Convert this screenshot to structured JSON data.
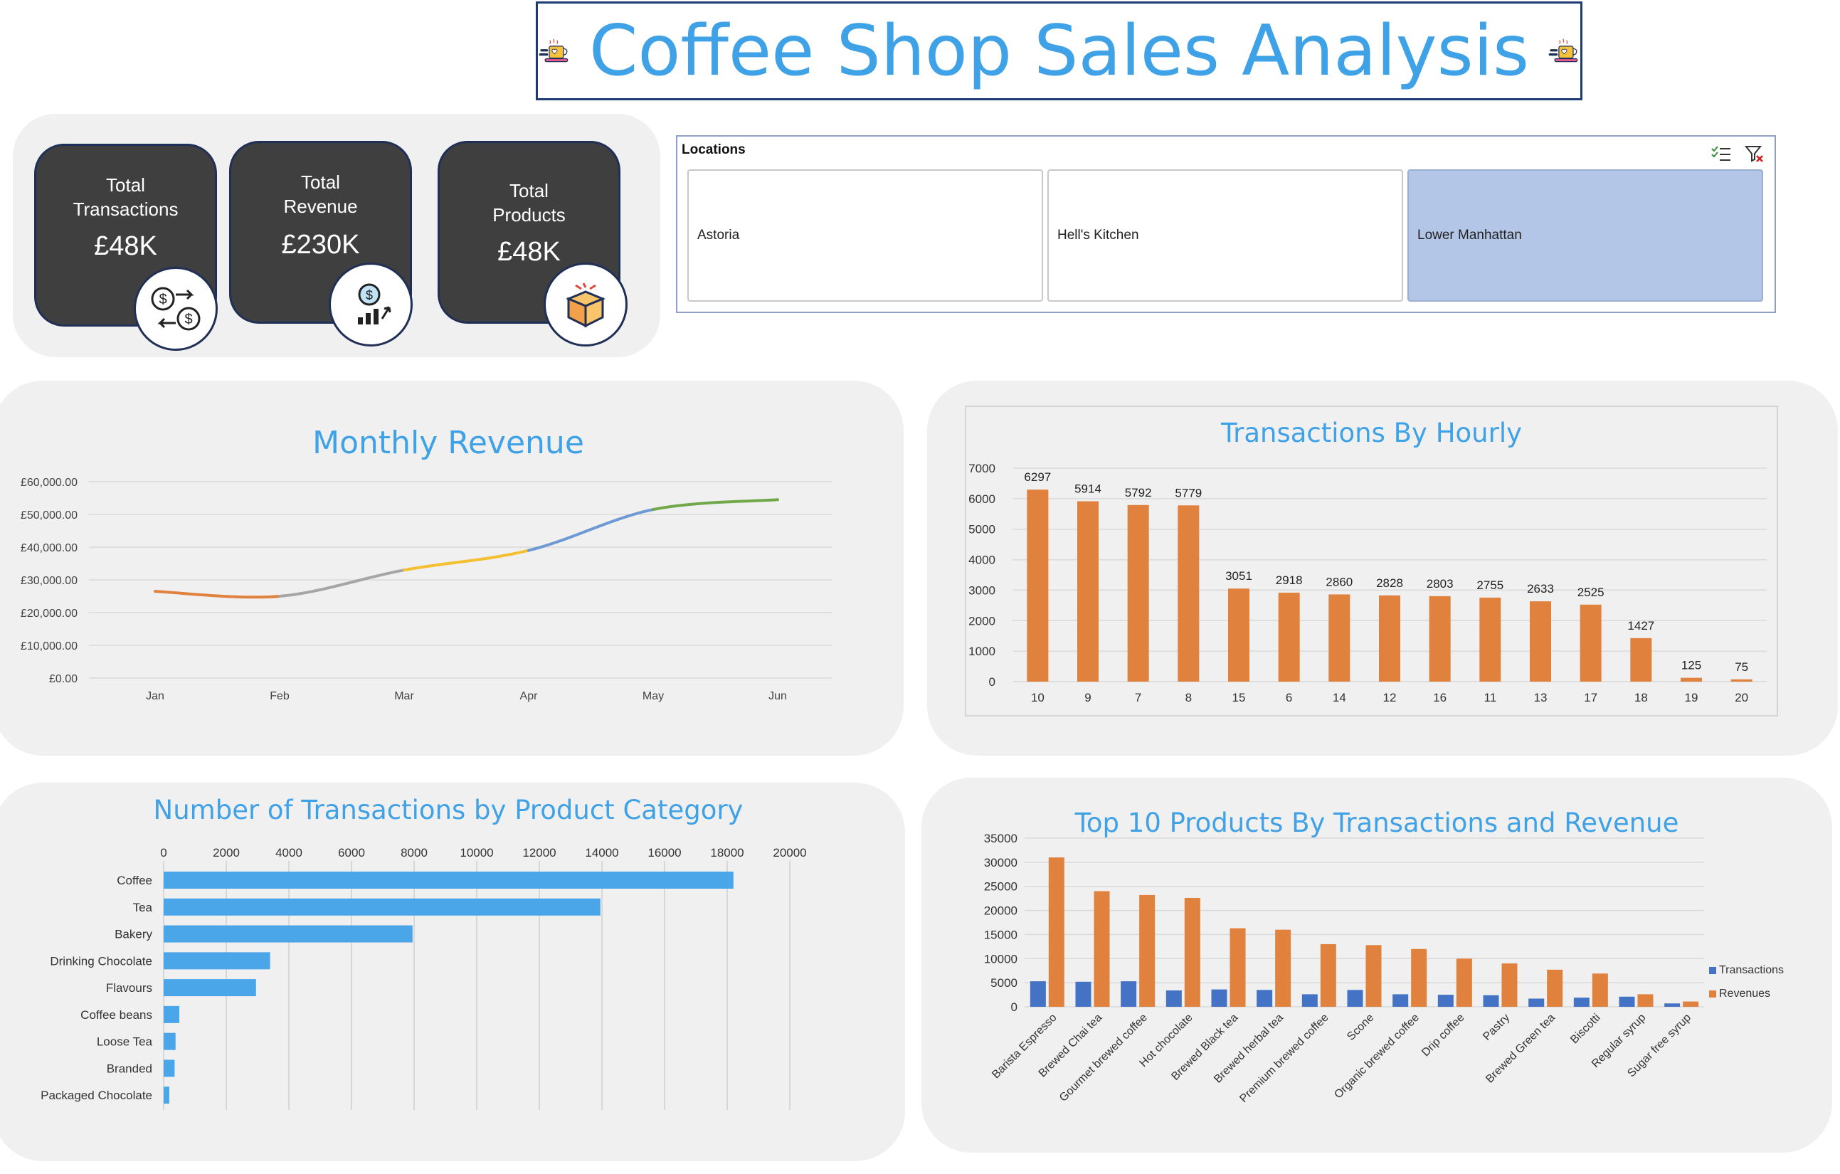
{
  "title": "Coffee Shop Sales Analysis",
  "kpis": [
    {
      "label_line1": "Total",
      "label_line2": "Transactions",
      "value": "£48K",
      "icon": "transaction-exchange-icon"
    },
    {
      "label_line1": "Total",
      "label_line2": "Revenue",
      "value": "£230K",
      "icon": "revenue-growth-icon"
    },
    {
      "label_line1": "Total",
      "label_line2": "Products",
      "value": "£48K",
      "icon": "product-box-icon"
    }
  ],
  "slicer": {
    "title": "Locations",
    "items": [
      {
        "label": "Astoria",
        "selected": false
      },
      {
        "label": "Hell's Kitchen",
        "selected": false
      },
      {
        "label": "Lower Manhattan",
        "selected": true
      }
    ],
    "icons": [
      "multi-select-icon",
      "clear-filter-icon"
    ],
    "selected_color": "#b4c6e7"
  },
  "colors": {
    "title": "#3fa1e6",
    "orange": "#e0813e",
    "blue_bar": "#4aa6e8",
    "dark_blue": "#4472c4",
    "card": "#3f3f3f",
    "panel": "#f0f0f0"
  },
  "chart_data": [
    {
      "id": "monthly",
      "type": "line",
      "title": "Monthly Revenue",
      "x": [
        "Jan",
        "Feb",
        "Mar",
        "Apr",
        "May",
        "Jun"
      ],
      "values": [
        26500,
        25000,
        33000,
        39000,
        51500,
        54500
      ],
      "segment_colors": [
        "#e0813e",
        "#a5a5a5",
        "#f4c032",
        "#6d9ad4",
        "#71a84a"
      ],
      "y_ticks": [
        "£0.00",
        "£10,000.00",
        "£20,000.00",
        "£30,000.00",
        "£40,000.00",
        "£50,000.00",
        "£60,000.00"
      ],
      "ylim": [
        0,
        60000
      ],
      "grid": true
    },
    {
      "id": "hourly",
      "type": "bar",
      "title": "Transactions By Hourly",
      "categories": [
        "10",
        "9",
        "7",
        "8",
        "15",
        "6",
        "14",
        "12",
        "16",
        "11",
        "13",
        "17",
        "18",
        "19",
        "20"
      ],
      "values": [
        6297,
        5914,
        5792,
        5779,
        3051,
        2918,
        2860,
        2828,
        2803,
        2755,
        2633,
        2525,
        1427,
        125,
        75
      ],
      "y_ticks": [
        "0",
        "1000",
        "2000",
        "3000",
        "4000",
        "5000",
        "6000",
        "7000"
      ],
      "ylim": [
        0,
        7000
      ],
      "color": "#e0813e",
      "grid": true
    },
    {
      "id": "category",
      "type": "bar",
      "orientation": "horizontal",
      "title": "Number of Transactions by Product Category",
      "categories": [
        "Coffee",
        "Tea",
        "Bakery",
        "Drinking Chocolate",
        "Flavours",
        "Coffee beans",
        "Loose Tea",
        "Branded",
        "Packaged Chocolate"
      ],
      "values": [
        18200,
        13950,
        7950,
        3400,
        2950,
        500,
        380,
        350,
        180
      ],
      "x_ticks": [
        "0",
        "2000",
        "4000",
        "6000",
        "8000",
        "10000",
        "12000",
        "14000",
        "16000",
        "18000",
        "20000"
      ],
      "xlim": [
        0,
        20000
      ],
      "color": "#4aa6e8",
      "grid": true
    },
    {
      "id": "top10",
      "type": "bar",
      "title": "Top 10 Products By Transactions and Revenue",
      "categories": [
        "Barista Espresso",
        "Brewed Chai tea",
        "Gourmet brewed coffee",
        "Hot chocolate",
        "Brewed Black tea",
        "Brewed herbal tea",
        "Premium brewed coffee",
        "Scone",
        "Organic brewed coffee",
        "Drip coffee",
        "Pastry",
        "Brewed Green tea",
        "Biscotti",
        "Regular syrup",
        "Sugar free syrup"
      ],
      "series": [
        {
          "name": "Transactions",
          "color": "#4472c4",
          "values": [
            5300,
            5200,
            5300,
            3400,
            3600,
            3500,
            2600,
            3500,
            2600,
            2500,
            2400,
            1700,
            1900,
            2100,
            700
          ]
        },
        {
          "name": "Revenues",
          "color": "#e0813e",
          "values": [
            31000,
            24000,
            23200,
            22600,
            16300,
            16000,
            13000,
            12800,
            12000,
            10000,
            9000,
            7700,
            6900,
            2600,
            1100
          ]
        }
      ],
      "y_ticks": [
        "0",
        "5000",
        "10000",
        "15000",
        "20000",
        "25000",
        "30000",
        "35000"
      ],
      "ylim": [
        0,
        35000
      ],
      "legend": "right",
      "grid": true
    }
  ]
}
